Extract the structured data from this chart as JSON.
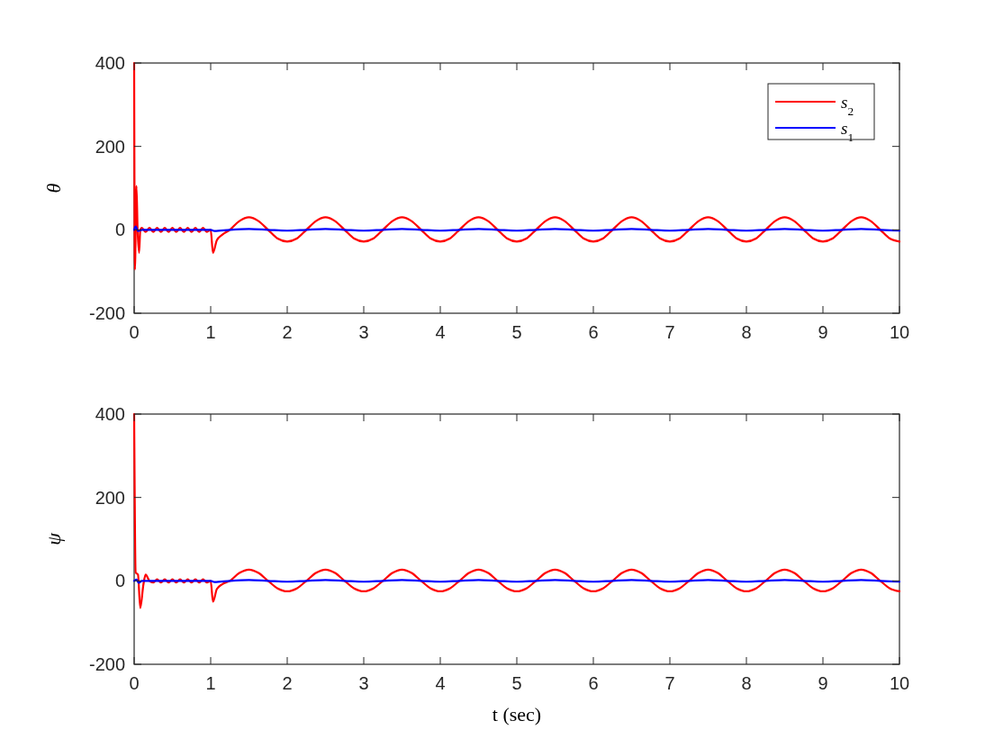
{
  "chart_data": [
    {
      "type": "line",
      "ylabel": "θ",
      "xlim": [
        0,
        10
      ],
      "ylim": [
        -200,
        400
      ],
      "xticks": [
        0,
        1,
        2,
        3,
        4,
        5,
        6,
        7,
        8,
        9,
        10
      ],
      "yticks": [
        -200,
        0,
        200,
        400
      ],
      "legend": "top right",
      "grid": false,
      "line_style": "solid",
      "marker": "none",
      "series": [
        {
          "name": "s$_{2}$",
          "color": "#ff0000",
          "x": [
            0,
            0.01,
            0.03,
            0.045,
            0.065,
            0.08,
            0.1,
            0.15,
            0.2,
            0.25,
            0.3,
            0.35,
            0.4,
            0.45,
            0.5,
            0.55,
            0.6,
            0.65,
            0.7,
            0.75,
            0.8,
            0.85,
            0.9,
            0.95,
            1,
            1.03,
            1.08,
            1.15,
            1.25,
            1.375,
            1.5,
            1.625,
            1.75,
            1.875,
            2,
            2.125,
            2.25,
            2.375,
            2.5,
            2.625,
            2.75,
            2.875,
            3,
            3.125,
            3.25,
            3.375,
            3.5,
            3.625,
            3.75,
            3.875,
            4,
            4.125,
            4.25,
            4.375,
            4.5,
            4.625,
            4.75,
            4.875,
            5,
            5.125,
            5.25,
            5.375,
            5.5,
            5.625,
            5.75,
            5.875,
            6,
            6.125,
            6.25,
            6.375,
            6.5,
            6.625,
            6.75,
            6.875,
            7,
            7.125,
            7.25,
            7.375,
            7.5,
            7.625,
            7.75,
            7.875,
            8,
            8.125,
            8.25,
            8.375,
            8.5,
            8.625,
            8.75,
            8.875,
            9,
            9.125,
            9.25,
            9.375,
            9.5,
            9.625,
            9.75,
            9.875,
            10
          ],
          "values": [
            400,
            -95,
            105,
            0,
            -55,
            0,
            5,
            -5,
            5,
            -5,
            5,
            -5,
            5,
            -5,
            5,
            -5,
            5,
            -5,
            5,
            -5,
            5,
            -5,
            5,
            -5,
            0,
            -55,
            -25,
            -12,
            0,
            21,
            30,
            21,
            0,
            -21,
            -28,
            -21,
            0,
            21,
            30,
            21,
            0,
            -21,
            -28,
            -21,
            0,
            21,
            30,
            21,
            0,
            -21,
            -28,
            -21,
            0,
            21,
            30,
            21,
            0,
            -21,
            -28,
            -21,
            0,
            21,
            30,
            21,
            0,
            -21,
            -28,
            -21,
            0,
            21,
            30,
            21,
            0,
            -21,
            -28,
            -21,
            0,
            21,
            30,
            21,
            0,
            -21,
            -28,
            -21,
            0,
            21,
            30,
            21,
            0,
            -21,
            -28,
            -21,
            0,
            21,
            30,
            21,
            0,
            -21,
            -28
          ]
        },
        {
          "name": "s$_{1}$",
          "color": "#0000ff",
          "x": [
            0,
            0.02,
            0.05,
            0.1,
            1,
            1.05,
            1.25,
            1.5,
            1.75,
            2,
            2.25,
            2.5,
            2.75,
            3,
            3.25,
            3.5,
            3.75,
            4,
            4.25,
            4.5,
            4.75,
            5,
            5.25,
            5.5,
            5.75,
            6,
            6.25,
            6.5,
            6.75,
            7,
            7.25,
            7.5,
            7.75,
            8,
            8.25,
            8.5,
            8.75,
            9,
            9.25,
            9.5,
            9.75,
            10
          ],
          "values": [
            0,
            8,
            -3,
            0,
            0,
            -3,
            0,
            2,
            0,
            -2,
            0,
            2,
            0,
            -2,
            0,
            2,
            0,
            -2,
            0,
            2,
            0,
            -2,
            0,
            2,
            0,
            -2,
            0,
            2,
            0,
            -2,
            0,
            2,
            0,
            -2,
            0,
            2,
            0,
            -2,
            0,
            2,
            0,
            -2
          ]
        }
      ]
    },
    {
      "type": "line",
      "ylabel": "ψ",
      "xlabel": "t (sec)",
      "xlim": [
        0,
        10
      ],
      "ylim": [
        -200,
        400
      ],
      "xticks": [
        0,
        1,
        2,
        3,
        4,
        5,
        6,
        7,
        8,
        9,
        10
      ],
      "yticks": [
        -200,
        0,
        200,
        400
      ],
      "grid": false,
      "line_style": "solid",
      "marker": "none",
      "series": [
        {
          "color": "#ff0000",
          "x": [
            0,
            0.02,
            0.05,
            0.08,
            0.12,
            0.15,
            0.2,
            0.25,
            0.3,
            0.35,
            0.4,
            0.45,
            0.5,
            0.55,
            0.6,
            0.65,
            0.7,
            0.75,
            0.8,
            0.85,
            0.9,
            0.95,
            1,
            1.03,
            1.08,
            1.15,
            1.25,
            1.375,
            1.5,
            1.625,
            1.75,
            1.875,
            2,
            2.125,
            2.25,
            2.375,
            2.5,
            2.625,
            2.75,
            2.875,
            3,
            3.125,
            3.25,
            3.375,
            3.5,
            3.625,
            3.75,
            3.875,
            4,
            4.125,
            4.25,
            4.375,
            4.5,
            4.625,
            4.75,
            4.875,
            5,
            5.125,
            5.25,
            5.375,
            5.5,
            5.625,
            5.75,
            5.875,
            6,
            6.125,
            6.25,
            6.375,
            6.5,
            6.625,
            6.75,
            6.875,
            7,
            7.125,
            7.25,
            7.375,
            7.5,
            7.625,
            7.75,
            7.875,
            8,
            8.125,
            8.25,
            8.375,
            8.5,
            8.625,
            8.75,
            8.875,
            9,
            9.125,
            9.25,
            9.375,
            9.5,
            9.625,
            9.75,
            9.875,
            10
          ],
          "values": [
            400,
            20,
            15,
            -65,
            -10,
            15,
            0,
            -4,
            4,
            -4,
            4,
            -4,
            4,
            -4,
            4,
            -4,
            4,
            -4,
            4,
            -4,
            4,
            -4,
            0,
            -50,
            -20,
            -8,
            0,
            19,
            27,
            19,
            0,
            -18,
            -25,
            -18,
            0,
            19,
            27,
            19,
            0,
            -18,
            -25,
            -18,
            0,
            19,
            27,
            19,
            0,
            -18,
            -25,
            -18,
            0,
            19,
            27,
            19,
            0,
            -18,
            -25,
            -18,
            0,
            19,
            27,
            19,
            0,
            -18,
            -25,
            -18,
            0,
            19,
            27,
            19,
            0,
            -18,
            -25,
            -18,
            0,
            19,
            27,
            19,
            0,
            -18,
            -25,
            -18,
            0,
            19,
            27,
            19,
            0,
            -18,
            -25,
            -18,
            0,
            19,
            27,
            19,
            0,
            -18,
            -25
          ]
        },
        {
          "color": "#0000ff",
          "x": [
            0,
            0.03,
            0.06,
            0.1,
            1,
            1.05,
            1.25,
            1.5,
            1.75,
            2,
            2.25,
            2.5,
            2.75,
            3,
            3.25,
            3.5,
            3.75,
            4,
            4.25,
            4.5,
            4.75,
            5,
            5.25,
            5.5,
            5.75,
            6,
            6.25,
            6.5,
            6.75,
            7,
            7.25,
            7.5,
            7.75,
            8,
            8.25,
            8.5,
            8.75,
            9,
            9.25,
            9.5,
            9.75,
            10
          ],
          "values": [
            0,
            3,
            -5,
            0,
            0,
            -3,
            0,
            2,
            0,
            -2,
            0,
            2,
            0,
            -2,
            0,
            2,
            0,
            -2,
            0,
            2,
            0,
            -2,
            0,
            2,
            0,
            -2,
            0,
            2,
            0,
            -2,
            0,
            2,
            0,
            -2,
            0,
            2,
            0,
            -2,
            0,
            2,
            0,
            -2
          ]
        }
      ]
    }
  ]
}
